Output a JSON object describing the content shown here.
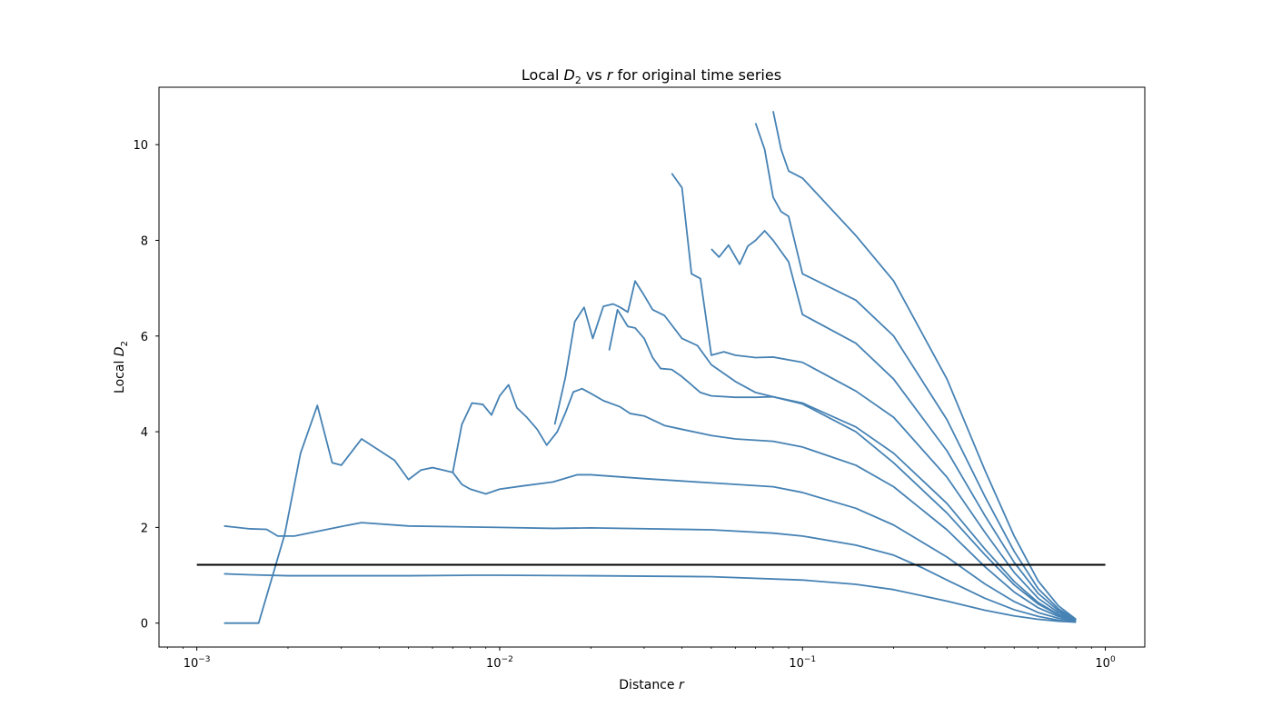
{
  "chart_data": {
    "type": "line",
    "title": {
      "pre": "Local ",
      "sym": "D",
      "sub": "2",
      "post": " vs ",
      "var": "r",
      "tail": " for original time series"
    },
    "xlabel": {
      "pre": "Distance ",
      "var": "r"
    },
    "ylabel": {
      "pre": "Local ",
      "sym": "D",
      "sub": "2"
    },
    "x_scale": "log",
    "xlim": [
      0.00075,
      1.35
    ],
    "ylim": [
      -0.5,
      11.2
    ],
    "x_ticks": [
      {
        "value": 0.001,
        "base": "10",
        "exp": "−3"
      },
      {
        "value": 0.01,
        "base": "10",
        "exp": "−2"
      },
      {
        "value": 0.1,
        "base": "10",
        "exp": "−1"
      },
      {
        "value": 1,
        "base": "10",
        "exp": "0"
      }
    ],
    "y_ticks": [
      0,
      2,
      4,
      6,
      8,
      10
    ],
    "grid": false,
    "series_color": "#4682b4",
    "reference_line": {
      "y": 1.22,
      "x_range": [
        0.001,
        1.0
      ],
      "color": "#000000"
    },
    "series": [
      {
        "x": [
          0.00123,
          0.0015,
          0.002,
          0.003,
          0.005,
          0.008,
          0.01,
          0.02,
          0.05,
          0.1,
          0.15,
          0.2,
          0.3,
          0.4,
          0.5,
          0.6,
          0.7,
          0.8
        ],
        "y": [
          1.03,
          1.01,
          0.99,
          0.99,
          0.99,
          1.0,
          1.0,
          0.99,
          0.97,
          0.9,
          0.81,
          0.7,
          0.46,
          0.27,
          0.15,
          0.08,
          0.04,
          0.02
        ]
      },
      {
        "x": [
          0.00123,
          0.0015,
          0.0017,
          0.00185,
          0.0021,
          0.003,
          0.0035,
          0.005,
          0.01,
          0.015,
          0.02,
          0.05,
          0.08,
          0.1,
          0.15,
          0.2,
          0.25,
          0.3,
          0.4,
          0.5,
          0.6,
          0.7,
          0.8
        ],
        "y": [
          2.03,
          1.97,
          1.96,
          1.82,
          1.82,
          2.02,
          2.1,
          2.03,
          2.0,
          1.98,
          1.99,
          1.95,
          1.88,
          1.82,
          1.63,
          1.42,
          1.15,
          0.9,
          0.52,
          0.28,
          0.14,
          0.06,
          0.02
        ]
      },
      {
        "x": [
          0.00123,
          0.0014,
          0.0016,
          0.0018,
          0.00195,
          0.0022,
          0.0025,
          0.0028,
          0.003,
          0.0035,
          0.0045,
          0.005,
          0.0055,
          0.006,
          0.0065,
          0.007,
          0.0075,
          0.008,
          0.009,
          0.01,
          0.012,
          0.015,
          0.018,
          0.02,
          0.03,
          0.04,
          0.05,
          0.06,
          0.08,
          0.1,
          0.15,
          0.2,
          0.3,
          0.4,
          0.5,
          0.6,
          0.7,
          0.8
        ],
        "y": [
          0,
          0,
          0,
          1.1,
          1.85,
          3.55,
          4.55,
          3.35,
          3.3,
          3.85,
          3.4,
          3.0,
          3.2,
          3.25,
          3.2,
          3.15,
          2.9,
          2.8,
          2.7,
          2.8,
          2.87,
          2.95,
          3.1,
          3.1,
          3.02,
          2.97,
          2.93,
          2.9,
          2.85,
          2.73,
          2.4,
          2.05,
          1.38,
          0.82,
          0.45,
          0.22,
          0.1,
          0.04
        ]
      },
      {
        "x": [
          0.007,
          0.0075,
          0.0081,
          0.0088,
          0.0094,
          0.01,
          0.0107,
          0.0114,
          0.0123,
          0.0133,
          0.0143,
          0.0155,
          0.0165,
          0.0175,
          0.0187,
          0.02,
          0.022,
          0.025,
          0.027,
          0.03,
          0.035,
          0.04,
          0.05,
          0.06,
          0.08,
          0.1,
          0.15,
          0.2,
          0.3,
          0.4,
          0.5,
          0.6,
          0.7,
          0.8
        ],
        "y": [
          3.15,
          4.15,
          4.6,
          4.57,
          4.35,
          4.75,
          4.98,
          4.5,
          4.3,
          4.05,
          3.72,
          4.0,
          4.4,
          4.83,
          4.9,
          4.8,
          4.65,
          4.52,
          4.38,
          4.33,
          4.13,
          4.05,
          3.92,
          3.85,
          3.8,
          3.68,
          3.3,
          2.85,
          1.95,
          1.18,
          0.65,
          0.32,
          0.14,
          0.05
        ]
      },
      {
        "x": [
          0.0152,
          0.0165,
          0.0177,
          0.019,
          0.0203,
          0.022,
          0.0237,
          0.025,
          0.0265,
          0.028,
          0.03,
          0.032,
          0.035,
          0.04,
          0.045,
          0.05,
          0.06,
          0.07,
          0.08,
          0.1,
          0.15,
          0.2,
          0.3,
          0.4,
          0.5,
          0.6,
          0.7,
          0.8
        ],
        "y": [
          4.15,
          5.15,
          6.3,
          6.6,
          5.95,
          6.62,
          6.67,
          6.6,
          6.5,
          7.15,
          6.85,
          6.55,
          6.43,
          5.95,
          5.8,
          5.4,
          5.05,
          4.82,
          4.73,
          4.58,
          4.0,
          3.35,
          2.3,
          1.43,
          0.8,
          0.4,
          0.17,
          0.05
        ]
      },
      {
        "x": [
          0.023,
          0.0245,
          0.0265,
          0.028,
          0.03,
          0.032,
          0.034,
          0.037,
          0.04,
          0.043,
          0.046,
          0.05,
          0.06,
          0.07,
          0.08,
          0.1,
          0.15,
          0.2,
          0.3,
          0.4,
          0.5,
          0.6,
          0.7,
          0.8
        ],
        "y": [
          5.7,
          6.55,
          6.2,
          6.17,
          5.95,
          5.55,
          5.32,
          5.3,
          5.15,
          4.98,
          4.82,
          4.75,
          4.72,
          4.72,
          4.73,
          4.6,
          4.1,
          3.55,
          2.5,
          1.55,
          0.87,
          0.43,
          0.18,
          0.05
        ]
      },
      {
        "x": [
          0.037,
          0.04,
          0.043,
          0.046,
          0.05,
          0.055,
          0.06,
          0.07,
          0.08,
          0.1,
          0.15,
          0.2,
          0.3,
          0.4,
          0.5,
          0.6,
          0.7,
          0.8
        ],
        "y": [
          9.4,
          9.1,
          7.3,
          7.2,
          5.6,
          5.67,
          5.6,
          5.55,
          5.56,
          5.45,
          4.85,
          4.3,
          3.05,
          1.9,
          1.06,
          0.52,
          0.22,
          0.06
        ]
      },
      {
        "x": [
          0.05,
          0.053,
          0.057,
          0.062,
          0.066,
          0.07,
          0.075,
          0.08,
          0.09,
          0.1,
          0.15,
          0.2,
          0.3,
          0.4,
          0.5,
          0.6,
          0.7,
          0.8
        ],
        "y": [
          7.82,
          7.65,
          7.9,
          7.5,
          7.88,
          8.0,
          8.2,
          8.0,
          7.55,
          6.45,
          5.85,
          5.1,
          3.6,
          2.25,
          1.27,
          0.62,
          0.26,
          0.07
        ]
      },
      {
        "x": [
          0.07,
          0.075,
          0.08,
          0.085,
          0.09,
          0.1,
          0.15,
          0.2,
          0.3,
          0.4,
          0.5,
          0.6,
          0.7,
          0.8
        ],
        "y": [
          10.45,
          9.9,
          8.9,
          8.6,
          8.5,
          7.3,
          6.75,
          6.0,
          4.25,
          2.65,
          1.5,
          0.72,
          0.3,
          0.07
        ]
      },
      {
        "x": [
          0.08,
          0.085,
          0.09,
          0.1,
          0.15,
          0.2,
          0.3,
          0.4,
          0.5,
          0.6,
          0.7,
          0.8
        ],
        "y": [
          10.7,
          9.9,
          9.45,
          9.3,
          8.1,
          7.15,
          5.1,
          3.2,
          1.82,
          0.88,
          0.36,
          0.08
        ]
      }
    ]
  }
}
